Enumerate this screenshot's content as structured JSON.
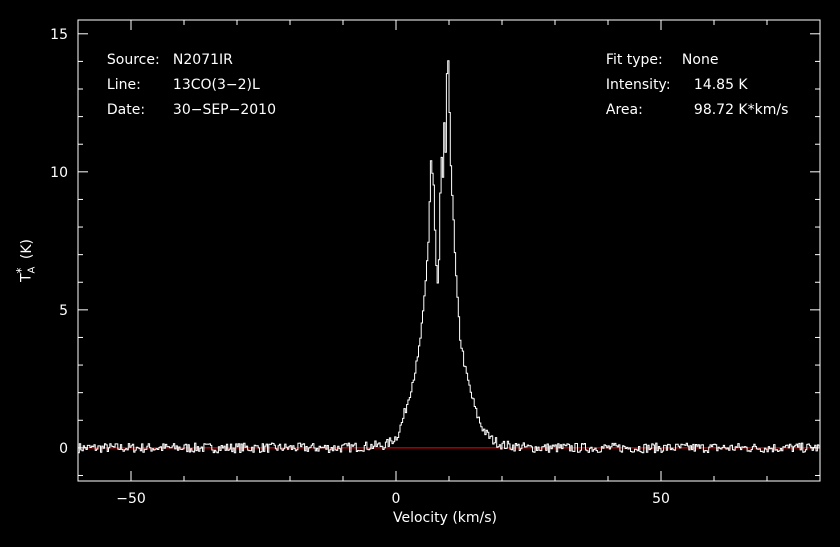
{
  "header_left": {
    "source_label": "Source:",
    "source_value": "N2071IR",
    "line_label": "Line:",
    "line_value": "13CO(3−2)L",
    "date_label": "Date:",
    "date_value": "30−SEP−2010"
  },
  "header_right": {
    "fit_label": "Fit type:",
    "fit_value": "None",
    "intensity_label": "Intensity:",
    "intensity_value": "14.85 K",
    "area_label": "Area:",
    "area_value": "98.72 K*km/s"
  },
  "colors": {
    "background": "#000000",
    "trace": "#ffffff",
    "baseline": "#ff0000"
  },
  "chart_data": {
    "type": "line",
    "xlabel": "Velocity (km/s)",
    "ylabel_main": "T",
    "ylabel_sup": "*",
    "ylabel_sub": "A",
    "ylabel_unit": "(K)",
    "xlim": [
      -60,
      80
    ],
    "ylim": [
      -1.2,
      15.5
    ],
    "xticks": [
      -50,
      0,
      50
    ],
    "xtick_labels": [
      "−50",
      "0",
      "50"
    ],
    "yticks": [
      0,
      5,
      10,
      15
    ],
    "ytick_labels": [
      "0",
      "5",
      "10",
      "15"
    ],
    "baseline_y": 0,
    "series": [
      {
        "x": [
          -60,
          -30,
          -10,
          -2,
          0,
          1,
          2,
          3,
          4,
          4.5,
          5,
          5.5,
          6,
          6.5,
          7,
          7.4,
          7.8,
          8.1,
          8.4,
          8.7,
          9,
          9.3,
          9.6,
          10,
          10.3,
          10.6,
          11,
          11.5,
          12,
          13,
          14,
          15,
          16,
          17,
          18,
          20,
          25,
          40,
          80
        ],
        "values": [
          0,
          0,
          0,
          0.1,
          0.4,
          0.9,
          1.6,
          2.4,
          3.2,
          4.0,
          4.8,
          6.0,
          7.5,
          10.4,
          9.5,
          6.8,
          5.8,
          7.2,
          11.0,
          9.2,
          11.8,
          10.5,
          14.85,
          12.2,
          10.0,
          8.8,
          7.0,
          5.3,
          4.0,
          2.8,
          2.0,
          1.3,
          0.8,
          0.5,
          0.3,
          0.1,
          0,
          0,
          0
        ]
      }
    ]
  }
}
